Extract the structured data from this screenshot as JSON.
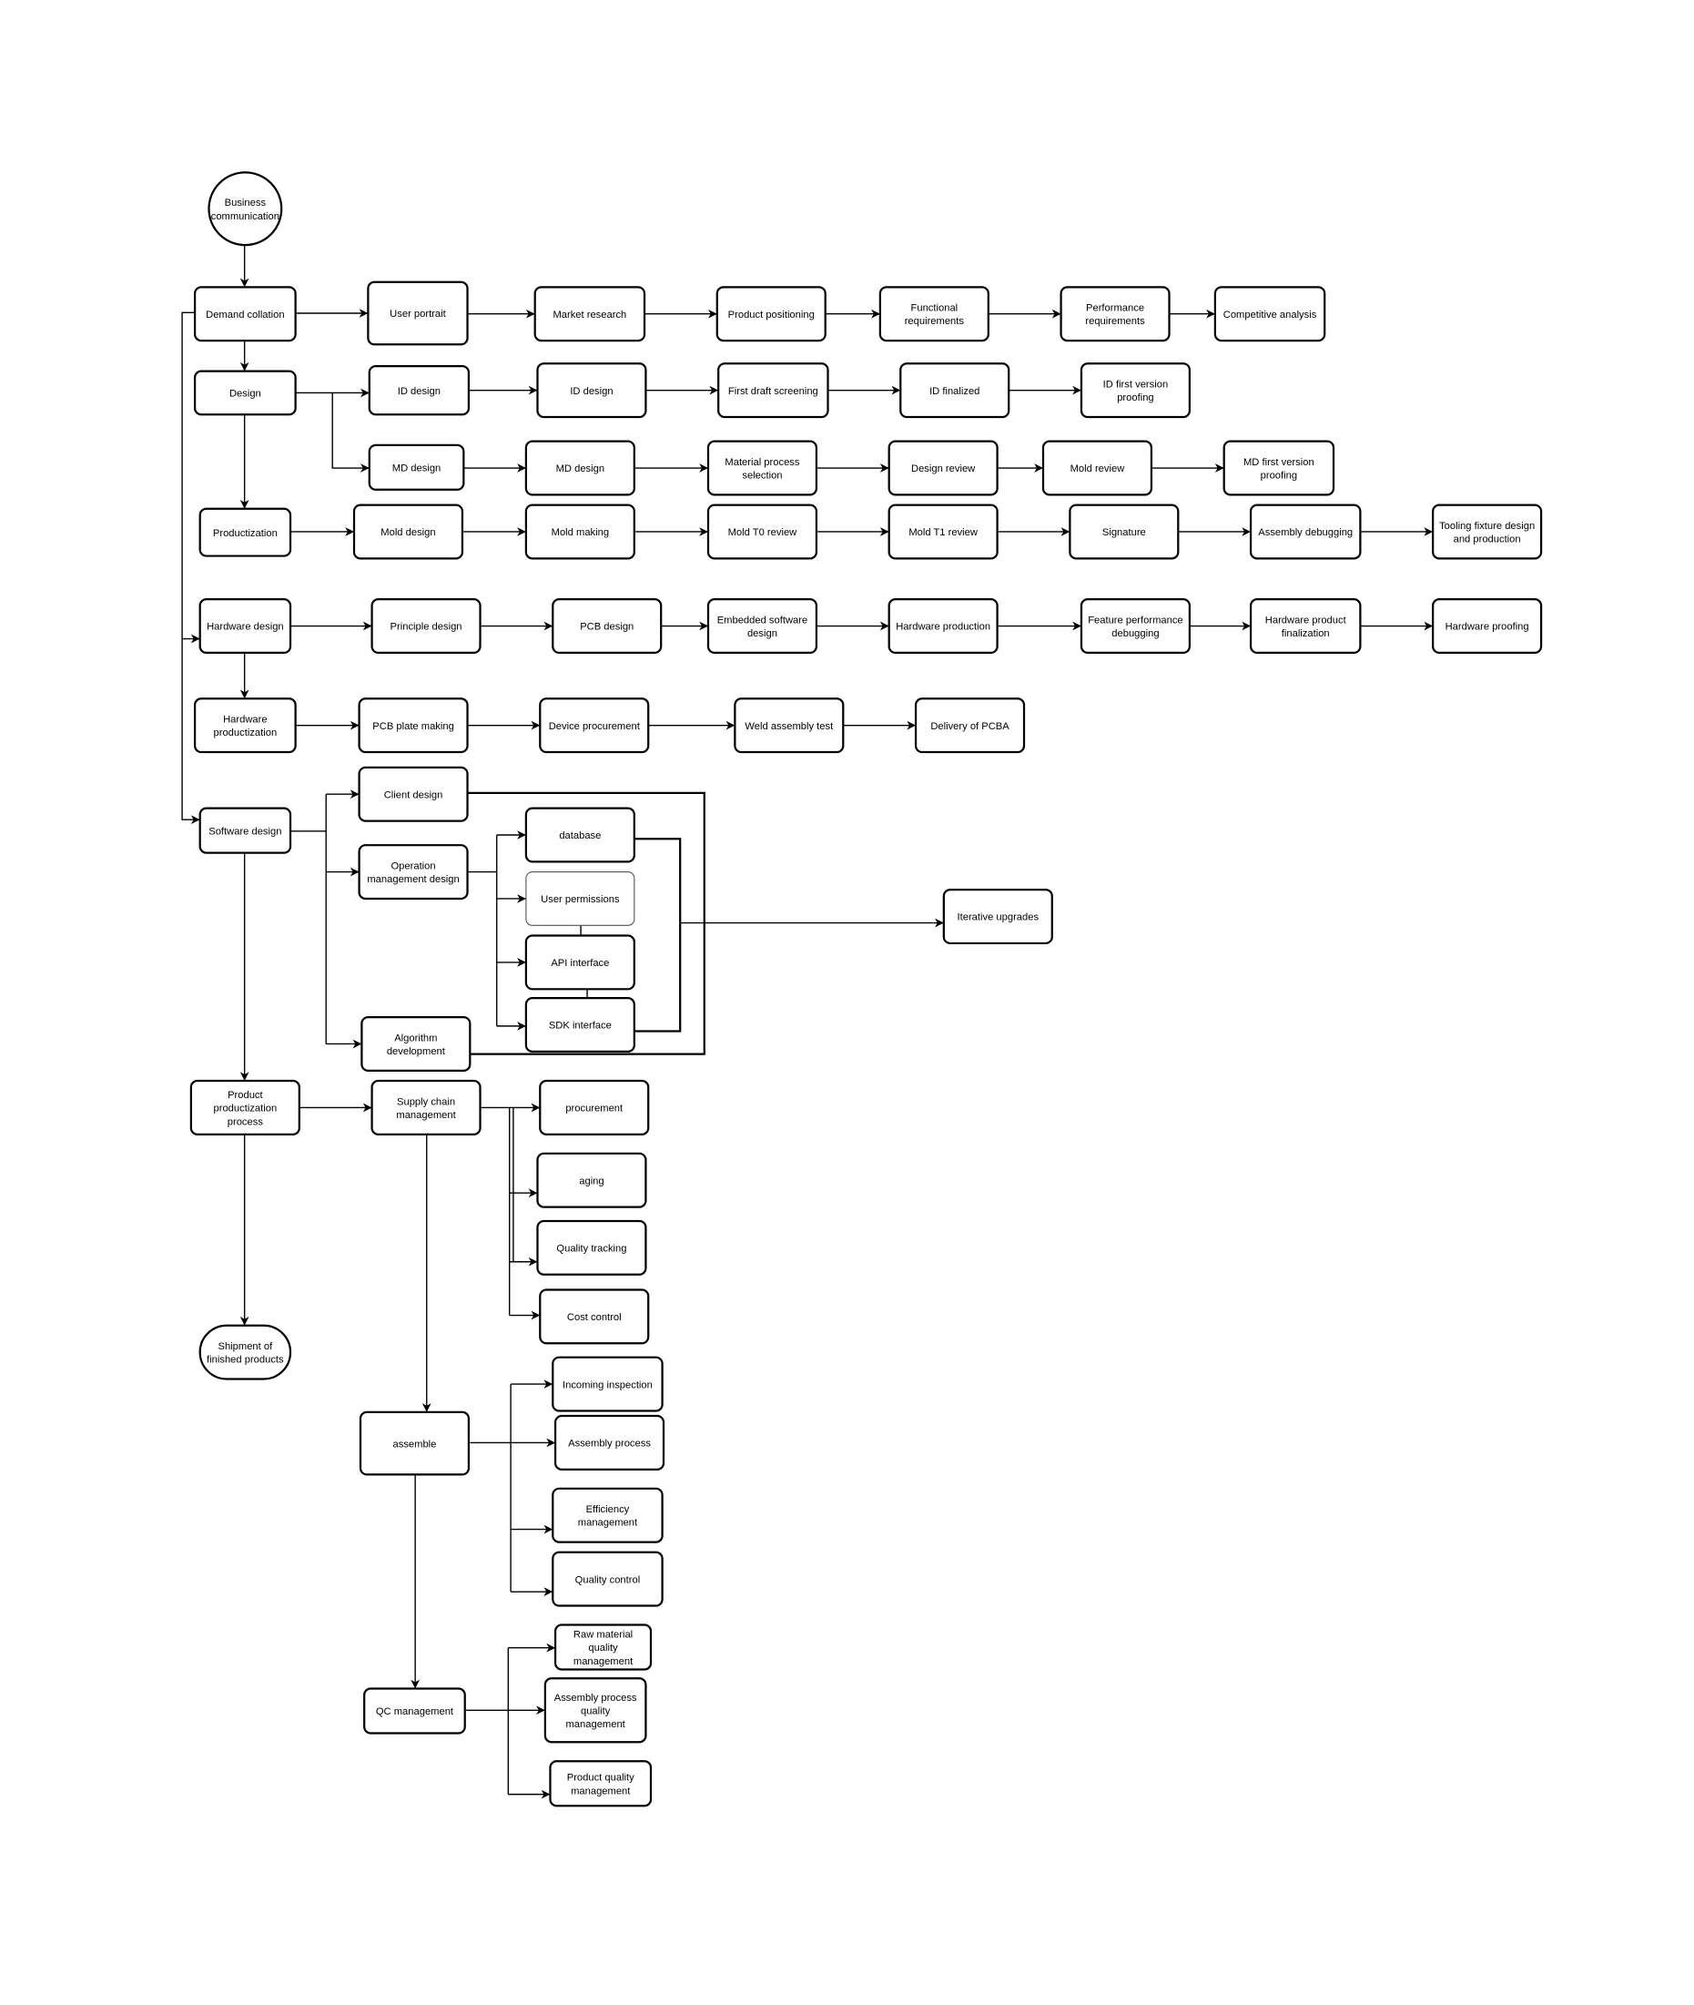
{
  "colors": {
    "stroke": "#000000",
    "fill": "#ffffff"
  },
  "nodes": {
    "start": {
      "label": [
        "Business",
        "communication"
      ],
      "shape": "circle"
    },
    "demand": {
      "label": [
        "Demand collation"
      ]
    },
    "user_portrait": {
      "label": [
        "User portrait"
      ]
    },
    "market": {
      "label": [
        "Market research"
      ]
    },
    "positioning": {
      "label": [
        "Product positioning"
      ]
    },
    "functional": {
      "label": [
        "Functional",
        "requirements"
      ]
    },
    "performance": {
      "label": [
        "Performance",
        "requirements"
      ]
    },
    "competitive": {
      "label": [
        "Competitive analysis"
      ]
    },
    "design": {
      "label": [
        "Design"
      ]
    },
    "id1": {
      "label": [
        "ID design"
      ]
    },
    "id2": {
      "label": [
        "ID design"
      ]
    },
    "firstdraft": {
      "label": [
        "First draft screening"
      ]
    },
    "idfinal": {
      "label": [
        "ID finalized"
      ]
    },
    "idproof": {
      "label": [
        "ID first version",
        "proofing"
      ]
    },
    "md1": {
      "label": [
        "MD design"
      ]
    },
    "md2": {
      "label": [
        "MD design"
      ]
    },
    "material": {
      "label": [
        "Material process",
        "selection"
      ]
    },
    "designreview": {
      "label": [
        "Design review"
      ]
    },
    "moldreview": {
      "label": [
        "Mold review"
      ]
    },
    "mdproof": {
      "label": [
        "MD first version",
        "proofing"
      ]
    },
    "productization": {
      "label": [
        "Productization"
      ]
    },
    "molddesign": {
      "label": [
        "Mold design"
      ]
    },
    "moldmaking": {
      "label": [
        "Mold making"
      ]
    },
    "t0": {
      "label": [
        "Mold T0 review"
      ]
    },
    "t1": {
      "label": [
        "Mold T1 review"
      ]
    },
    "signature": {
      "label": [
        "Signature"
      ]
    },
    "assemblydebug": {
      "label": [
        "Assembly debugging"
      ]
    },
    "tooling": {
      "label": [
        "Tooling fixture design",
        "and production"
      ]
    },
    "hwdesign": {
      "label": [
        "Hardware design"
      ]
    },
    "principle": {
      "label": [
        "Principle design"
      ]
    },
    "pcb": {
      "label": [
        "PCB design"
      ]
    },
    "embedded": {
      "label": [
        "Embedded software",
        "design"
      ]
    },
    "hwprod": {
      "label": [
        "Hardware production"
      ]
    },
    "feature": {
      "label": [
        "Feature performance",
        "debugging"
      ]
    },
    "hwfinal": {
      "label": [
        "Hardware product",
        "finalization"
      ]
    },
    "hwproof": {
      "label": [
        "Hardware proofing"
      ]
    },
    "hwproductization": {
      "label": [
        "Hardware",
        "productization"
      ]
    },
    "pcbplate": {
      "label": [
        "PCB plate making"
      ]
    },
    "device": {
      "label": [
        "Device procurement"
      ]
    },
    "weld": {
      "label": [
        "Weld assembly test"
      ]
    },
    "pcba": {
      "label": [
        "Delivery of PCBA"
      ]
    },
    "software": {
      "label": [
        "Software design"
      ]
    },
    "client": {
      "label": [
        "Client design"
      ]
    },
    "opmgmt": {
      "label": [
        "Operation",
        "management design"
      ]
    },
    "algorithm": {
      "label": [
        "Algorithm",
        "development"
      ]
    },
    "database": {
      "label": [
        "database"
      ]
    },
    "userperm": {
      "label": [
        "User permissions"
      ],
      "style": "thin"
    },
    "api": {
      "label": [
        "API interface"
      ]
    },
    "sdk": {
      "label": [
        "SDK interface"
      ]
    },
    "iterative": {
      "label": [
        "Iterative upgrades"
      ]
    },
    "productproc": {
      "label": [
        "Product",
        "productization",
        "process"
      ]
    },
    "supply": {
      "label": [
        "Supply chain",
        "management"
      ]
    },
    "procurement": {
      "label": [
        "procurement"
      ]
    },
    "aging": {
      "label": [
        "aging"
      ]
    },
    "qtracking": {
      "label": [
        "Quality tracking"
      ]
    },
    "cost": {
      "label": [
        "Cost control"
      ]
    },
    "shipment": {
      "label": [
        "Shipment of",
        "finished products"
      ],
      "shape": "stadium"
    },
    "assemble": {
      "label": [
        "assemble"
      ]
    },
    "incoming": {
      "label": [
        "Incoming inspection"
      ]
    },
    "asmproc": {
      "label": [
        "Assembly process"
      ]
    },
    "efficiency": {
      "label": [
        "Efficiency",
        "management"
      ]
    },
    "qcontrol": {
      "label": [
        "Quality control"
      ]
    },
    "qc": {
      "label": [
        "QC management"
      ]
    },
    "raw": {
      "label": [
        "Raw material",
        "quality",
        "management"
      ]
    },
    "asmqual": {
      "label": [
        "Assembly process",
        "quality",
        "management"
      ]
    },
    "productqual": {
      "label": [
        "Product quality",
        "management"
      ]
    }
  }
}
